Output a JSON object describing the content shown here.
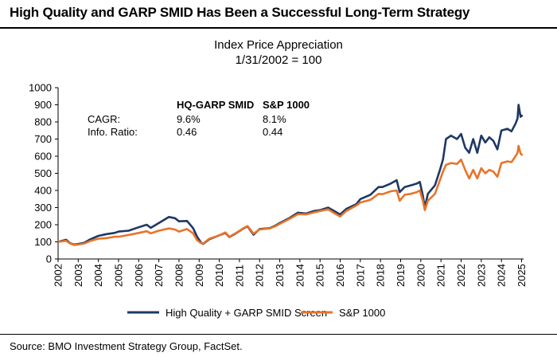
{
  "headline": "High Quality and GARP SMID Has Been a Successful Long-Term Strategy",
  "source": "Source: BMO Investment Strategy Group, FactSet.",
  "chart_data": {
    "type": "line",
    "title": "Index Price Appreciation",
    "subtitle": "1/31/2002 = 100",
    "xlabel": "",
    "ylabel": "",
    "xlim": [
      2002,
      2025.1
    ],
    "ylim": [
      0,
      1000
    ],
    "yticks": [
      0,
      100,
      200,
      300,
      400,
      500,
      600,
      700,
      800,
      900,
      1000
    ],
    "xticks": [
      "2002",
      "2003",
      "2004",
      "2005",
      "2006",
      "2007",
      "2008",
      "2009",
      "2010",
      "2011",
      "2012",
      "2013",
      "2014",
      "2015",
      "2016",
      "2017",
      "2018",
      "2019",
      "2020",
      "2021",
      "2022",
      "2023",
      "2024",
      "2025"
    ],
    "grid": false,
    "legend_position": "bottom",
    "stats_table": {
      "headers": [
        "",
        "HQ-GARP SMID",
        "S&P 1000"
      ],
      "rows": [
        [
          "CAGR:",
          "9.6%",
          "8.1%"
        ],
        [
          "Info. Ratio:",
          "0.46",
          "0.44"
        ]
      ]
    },
    "series": [
      {
        "name": "High Quality + GARP SMID Screen",
        "color": "#1f3864",
        "points": [
          [
            2002.0,
            100
          ],
          [
            2002.4,
            112
          ],
          [
            2002.6,
            92
          ],
          [
            2002.8,
            84
          ],
          [
            2003.0,
            88
          ],
          [
            2003.3,
            95
          ],
          [
            2003.6,
            115
          ],
          [
            2004.0,
            135
          ],
          [
            2004.4,
            145
          ],
          [
            2004.8,
            152
          ],
          [
            2005.0,
            160
          ],
          [
            2005.5,
            165
          ],
          [
            2006.0,
            185
          ],
          [
            2006.4,
            200
          ],
          [
            2006.6,
            182
          ],
          [
            2007.0,
            210
          ],
          [
            2007.5,
            245
          ],
          [
            2007.8,
            238
          ],
          [
            2008.0,
            220
          ],
          [
            2008.4,
            222
          ],
          [
            2008.7,
            180
          ],
          [
            2008.9,
            130
          ],
          [
            2009.1,
            95
          ],
          [
            2009.2,
            88
          ],
          [
            2009.5,
            115
          ],
          [
            2010.0,
            138
          ],
          [
            2010.3,
            152
          ],
          [
            2010.5,
            128
          ],
          [
            2010.8,
            148
          ],
          [
            2011.2,
            178
          ],
          [
            2011.4,
            190
          ],
          [
            2011.7,
            142
          ],
          [
            2012.0,
            175
          ],
          [
            2012.5,
            180
          ],
          [
            2012.8,
            196
          ],
          [
            2013.0,
            210
          ],
          [
            2013.5,
            240
          ],
          [
            2013.9,
            270
          ],
          [
            2014.3,
            265
          ],
          [
            2014.7,
            280
          ],
          [
            2015.0,
            285
          ],
          [
            2015.4,
            300
          ],
          [
            2015.7,
            280
          ],
          [
            2016.0,
            260
          ],
          [
            2016.3,
            292
          ],
          [
            2016.8,
            320
          ],
          [
            2017.0,
            350
          ],
          [
            2017.5,
            375
          ],
          [
            2017.9,
            420
          ],
          [
            2018.1,
            420
          ],
          [
            2018.5,
            440
          ],
          [
            2018.8,
            460
          ],
          [
            2018.95,
            390
          ],
          [
            2019.2,
            420
          ],
          [
            2019.5,
            430
          ],
          [
            2019.8,
            440
          ],
          [
            2019.95,
            450
          ],
          [
            2020.1,
            370
          ],
          [
            2020.2,
            300
          ],
          [
            2020.35,
            380
          ],
          [
            2020.7,
            430
          ],
          [
            2020.95,
            520
          ],
          [
            2021.1,
            580
          ],
          [
            2021.25,
            700
          ],
          [
            2021.5,
            720
          ],
          [
            2021.8,
            700
          ],
          [
            2022.0,
            730
          ],
          [
            2022.2,
            650
          ],
          [
            2022.4,
            620
          ],
          [
            2022.6,
            700
          ],
          [
            2022.8,
            620
          ],
          [
            2023.0,
            720
          ],
          [
            2023.2,
            680
          ],
          [
            2023.4,
            710
          ],
          [
            2023.6,
            690
          ],
          [
            2023.8,
            640
          ],
          [
            2024.0,
            750
          ],
          [
            2024.3,
            760
          ],
          [
            2024.5,
            745
          ],
          [
            2024.7,
            790
          ],
          [
            2024.8,
            820
          ],
          [
            2024.85,
            900
          ],
          [
            2024.95,
            830
          ],
          [
            2025.05,
            840
          ]
        ]
      },
      {
        "name": "S&P 1000",
        "color": "#e8742a",
        "points": [
          [
            2002.0,
            100
          ],
          [
            2002.4,
            106
          ],
          [
            2002.6,
            90
          ],
          [
            2002.8,
            82
          ],
          [
            2003.0,
            84
          ],
          [
            2003.3,
            90
          ],
          [
            2003.6,
            105
          ],
          [
            2004.0,
            118
          ],
          [
            2004.4,
            122
          ],
          [
            2004.8,
            130
          ],
          [
            2005.0,
            130
          ],
          [
            2005.5,
            140
          ],
          [
            2006.0,
            152
          ],
          [
            2006.4,
            162
          ],
          [
            2006.6,
            150
          ],
          [
            2007.0,
            165
          ],
          [
            2007.5,
            178
          ],
          [
            2007.8,
            172
          ],
          [
            2008.0,
            160
          ],
          [
            2008.4,
            175
          ],
          [
            2008.7,
            150
          ],
          [
            2008.9,
            110
          ],
          [
            2009.1,
            92
          ],
          [
            2009.2,
            90
          ],
          [
            2009.5,
            118
          ],
          [
            2010.0,
            138
          ],
          [
            2010.3,
            155
          ],
          [
            2010.5,
            130
          ],
          [
            2010.8,
            150
          ],
          [
            2011.2,
            180
          ],
          [
            2011.4,
            192
          ],
          [
            2011.7,
            148
          ],
          [
            2012.0,
            172
          ],
          [
            2012.5,
            178
          ],
          [
            2012.8,
            192
          ],
          [
            2013.0,
            205
          ],
          [
            2013.5,
            235
          ],
          [
            2013.9,
            262
          ],
          [
            2014.3,
            260
          ],
          [
            2014.7,
            272
          ],
          [
            2015.0,
            280
          ],
          [
            2015.4,
            290
          ],
          [
            2015.7,
            268
          ],
          [
            2016.0,
            248
          ],
          [
            2016.3,
            280
          ],
          [
            2016.8,
            312
          ],
          [
            2017.0,
            330
          ],
          [
            2017.5,
            345
          ],
          [
            2017.9,
            380
          ],
          [
            2018.1,
            378
          ],
          [
            2018.5,
            395
          ],
          [
            2018.8,
            400
          ],
          [
            2018.95,
            340
          ],
          [
            2019.2,
            375
          ],
          [
            2019.5,
            380
          ],
          [
            2019.8,
            390
          ],
          [
            2019.95,
            400
          ],
          [
            2020.1,
            340
          ],
          [
            2020.2,
            285
          ],
          [
            2020.35,
            340
          ],
          [
            2020.7,
            380
          ],
          [
            2020.95,
            460
          ],
          [
            2021.1,
            510
          ],
          [
            2021.25,
            550
          ],
          [
            2021.5,
            560
          ],
          [
            2021.8,
            555
          ],
          [
            2022.0,
            580
          ],
          [
            2022.2,
            520
          ],
          [
            2022.4,
            470
          ],
          [
            2022.6,
            520
          ],
          [
            2022.8,
            470
          ],
          [
            2023.0,
            530
          ],
          [
            2023.2,
            500
          ],
          [
            2023.4,
            520
          ],
          [
            2023.6,
            510
          ],
          [
            2023.8,
            480
          ],
          [
            2024.0,
            560
          ],
          [
            2024.3,
            570
          ],
          [
            2024.5,
            565
          ],
          [
            2024.7,
            600
          ],
          [
            2024.8,
            620
          ],
          [
            2024.85,
            660
          ],
          [
            2024.95,
            615
          ],
          [
            2025.05,
            605
          ]
        ]
      }
    ]
  }
}
